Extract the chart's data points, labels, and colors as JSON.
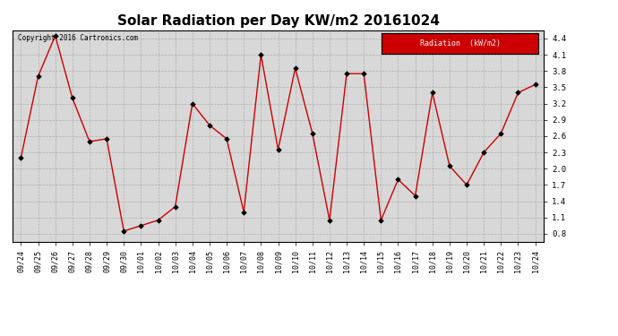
{
  "title": "Solar Radiation per Day KW/m2 20161024",
  "copyright": "Copyright 2016 Cartronics.com",
  "legend_label": "Radiation  (kW/m2)",
  "dates": [
    "09/24",
    "09/25",
    "09/26",
    "09/27",
    "09/28",
    "09/29",
    "09/30",
    "10/01",
    "10/02",
    "10/03",
    "10/04",
    "10/05",
    "10/06",
    "10/07",
    "10/08",
    "10/09",
    "10/10",
    "10/11",
    "10/12",
    "10/13",
    "10/14",
    "10/15",
    "10/16",
    "10/17",
    "10/18",
    "10/19",
    "10/20",
    "10/21",
    "10/22",
    "10/23",
    "10/24"
  ],
  "values": [
    2.2,
    3.7,
    4.45,
    3.3,
    2.5,
    2.55,
    0.85,
    0.95,
    1.05,
    1.3,
    3.2,
    2.8,
    2.55,
    1.2,
    4.1,
    2.35,
    3.85,
    2.65,
    1.05,
    3.75,
    3.75,
    1.05,
    1.8,
    1.5,
    3.4,
    2.05,
    1.7,
    2.3,
    2.65,
    3.4,
    3.55
  ],
  "line_color": "#cc0000",
  "marker_color": "#000000",
  "background_color": "#ffffff",
  "grid_color": "#b0b0b0",
  "plot_bg_color": "#d8d8d8",
  "ylim": [
    0.65,
    4.55
  ],
  "yticks": [
    0.8,
    1.1,
    1.4,
    1.7,
    2.0,
    2.3,
    2.6,
    2.9,
    3.2,
    3.5,
    3.8,
    4.1,
    4.4
  ],
  "title_fontsize": 11,
  "tick_fontsize": 6,
  "copyright_fontsize": 5.5,
  "legend_bg_color": "#cc0000",
  "legend_text_color": "#ffffff",
  "legend_fontsize": 6
}
